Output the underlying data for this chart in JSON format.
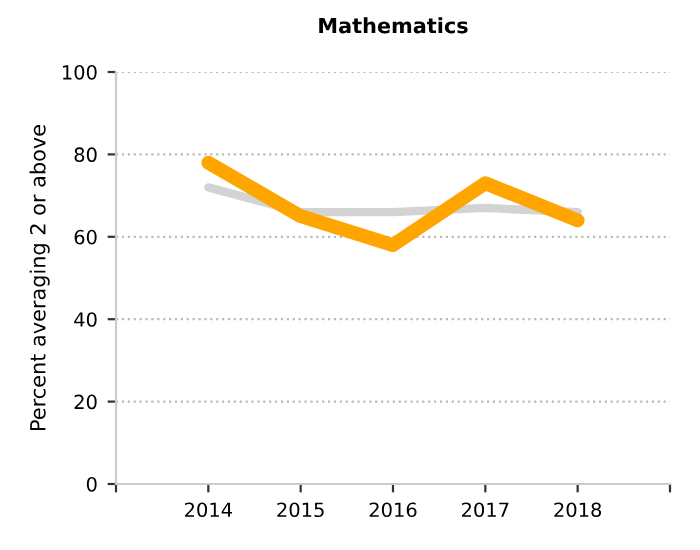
{
  "chart_data": {
    "type": "line",
    "title": "Mathematics",
    "ylabel": "Percent averaging 2 or above",
    "categories": [
      "2014",
      "2015",
      "2016",
      "2017",
      "2018"
    ],
    "series": [
      {
        "color": "#d3d3d3",
        "values": [
          72,
          66,
          66,
          67,
          66
        ]
      },
      {
        "color": "#ffa500",
        "values": [
          78,
          65,
          58,
          73,
          64
        ]
      }
    ],
    "ylim": [
      0,
      100
    ],
    "yticks": [
      0,
      20,
      40,
      60,
      80,
      100
    ],
    "grid": "y"
  }
}
